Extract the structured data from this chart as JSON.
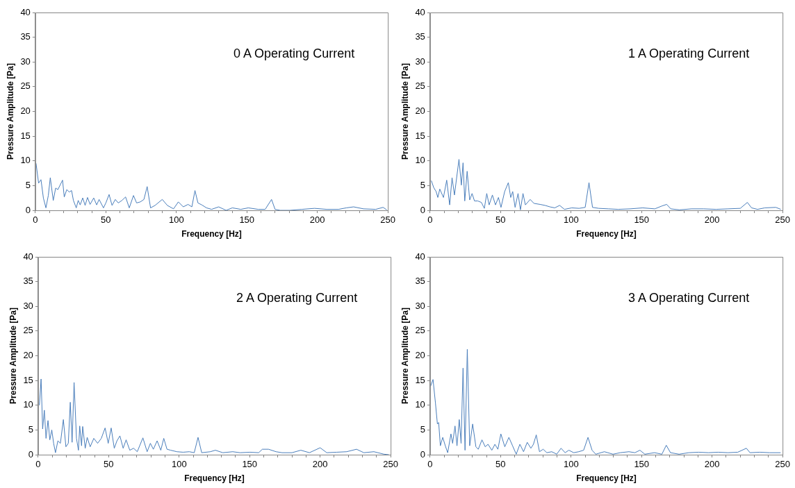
{
  "chart_data": [
    {
      "type": "line",
      "xlabel": "Frequency [Hz]",
      "ylabel": "Pressure Amplitude [Pa]",
      "annotations": [
        "0 A Operating Current"
      ],
      "color": "#4a7ebb",
      "marker": "none",
      "grid": false,
      "legend": false,
      "xlim": [
        0,
        250
      ],
      "ylim": [
        0,
        40
      ],
      "xticks": [
        0,
        {
          "value": 10,
          "label": null
        },
        {
          "value": 20,
          "label": null
        },
        {
          "value": 30,
          "label": null
        },
        {
          "value": 40,
          "label": null
        },
        50,
        {
          "value": 60,
          "label": null
        },
        {
          "value": 70,
          "label": null
        },
        {
          "value": 80,
          "label": null
        },
        {
          "value": 90,
          "label": null
        },
        100,
        {
          "value": 110,
          "label": null
        },
        {
          "value": 120,
          "label": null
        },
        {
          "value": 130,
          "label": null
        },
        {
          "value": 140,
          "label": null
        },
        150,
        {
          "value": 160,
          "label": null
        },
        {
          "value": 170,
          "label": null
        },
        {
          "value": 180,
          "label": null
        },
        {
          "value": 190,
          "label": null
        },
        200,
        {
          "value": 210,
          "label": null
        },
        {
          "value": 220,
          "label": null
        },
        {
          "value": 230,
          "label": null
        },
        {
          "value": 240,
          "label": null
        },
        250
      ],
      "yticks": [
        0,
        5,
        10,
        15,
        20,
        25,
        30,
        35,
        40
      ],
      "x": [
        0.5,
        2.3,
        4,
        5.7,
        7.5,
        9.2,
        10.6,
        12.7,
        14.4,
        16,
        19.3,
        20.5,
        22.3,
        24,
        25.7,
        27,
        29,
        30.4,
        31.8,
        33.6,
        35.3,
        37,
        38.8,
        41.4,
        43.5,
        45.2,
        48.3,
        50,
        52.3,
        54.4,
        56.7,
        58.8,
        61.4,
        64,
        66.6,
        69.6,
        71.8,
        74.4,
        77,
        79.3,
        81.7,
        84.9,
        90,
        93.6,
        98,
        101.4,
        104.9,
        108.3,
        111,
        113.2,
        115.3,
        118,
        121.4,
        125,
        130,
        135.3,
        139.7,
        145.7,
        151,
        158,
        163,
        167.5,
        170,
        173.6,
        180.5,
        189,
        198,
        206.6,
        215,
        220.5,
        225.7,
        232.7,
        241.4,
        246.6,
        249.2
      ],
      "values": [
        9.5,
        5.5,
        6.2,
        2.5,
        0.5,
        3,
        6.6,
        2,
        4.5,
        4.2,
        6.1,
        2.7,
        4.2,
        3.7,
        4,
        2,
        0.5,
        2,
        1.1,
        2.5,
        1,
        2.6,
        1.2,
        2.5,
        1.1,
        2.2,
        0.5,
        1.5,
        3.2,
        1,
        2.2,
        1.5,
        2,
        2.7,
        0.5,
        3,
        1.5,
        1.7,
        2.2,
        4.8,
        0.5,
        1,
        2.2,
        1,
        0.3,
        1.7,
        0.7,
        1.2,
        0.7,
        4,
        1.5,
        1.1,
        0.5,
        0.2,
        0.7,
        0,
        0.5,
        0.2,
        0.5,
        0.2,
        0.2,
        2.2,
        0.2,
        0,
        0,
        0.2,
        0.4,
        0.2,
        0.2,
        0.5,
        0.7,
        0.3,
        0.2,
        0.6,
        0.1
      ]
    },
    {
      "type": "line",
      "xlabel": "Frequency [Hz]",
      "ylabel": "Pressure Amplitude [Pa]",
      "annotations": [
        "1 A Operating Current"
      ],
      "color": "#4a7ebb",
      "marker": "none",
      "grid": false,
      "legend": false,
      "xlim": [
        0,
        250
      ],
      "ylim": [
        0,
        40
      ],
      "xticks": [
        0,
        {
          "value": 10,
          "label": null
        },
        {
          "value": 20,
          "label": null
        },
        {
          "value": 30,
          "label": null
        },
        {
          "value": 40,
          "label": null
        },
        50,
        {
          "value": 60,
          "label": null
        },
        {
          "value": 70,
          "label": null
        },
        {
          "value": 80,
          "label": null
        },
        {
          "value": 90,
          "label": null
        },
        100,
        {
          "value": 110,
          "label": null
        },
        {
          "value": 120,
          "label": null
        },
        {
          "value": 130,
          "label": null
        },
        {
          "value": 140,
          "label": null
        },
        150,
        {
          "value": 160,
          "label": null
        },
        {
          "value": 170,
          "label": null
        },
        {
          "value": 180,
          "label": null
        },
        {
          "value": 190,
          "label": null
        },
        200,
        {
          "value": 210,
          "label": null
        },
        {
          "value": 220,
          "label": null
        },
        {
          "value": 230,
          "label": null
        },
        {
          "value": 240,
          "label": null
        },
        250
      ],
      "yticks": [
        0,
        5,
        10,
        15,
        20,
        25,
        30,
        35,
        40
      ],
      "x": [
        0.9,
        2.6,
        4.3,
        5.5,
        6.9,
        9.5,
        11.8,
        13.9,
        15.6,
        17.3,
        20.5,
        22.2,
        23.4,
        24.6,
        26.3,
        28.1,
        29.8,
        31.5,
        33.8,
        36.4,
        38.5,
        40.2,
        41.9,
        44.2,
        46.4,
        48.5,
        50.3,
        52.9,
        55.5,
        57.2,
        58.6,
        60.3,
        62.4,
        64.1,
        65.9,
        67.6,
        71,
        73.7,
        78,
        81.5,
        85,
        88.4,
        91.9,
        95.3,
        100.5,
        105.7,
        110,
        112.7,
        115.2,
        119.6,
        126.5,
        133.4,
        142,
        150.8,
        159.4,
        164.6,
        167.8,
        170.7,
        176.8,
        185.4,
        194,
        202.8,
        211.4,
        220,
        225,
        228,
        232.2,
        237.4,
        245.2,
        248.7
      ],
      "values": [
        6,
        4.6,
        3.8,
        2.6,
        4.3,
        2.6,
        6.1,
        1.1,
        6.6,
        3.1,
        10.3,
        5.1,
        9.6,
        1.9,
        7.9,
        2.1,
        3.4,
        1.9,
        1.9,
        1.6,
        0.4,
        3.4,
        1.1,
        3.1,
        1.1,
        2.6,
        0.6,
        3.8,
        5.6,
        2.6,
        3.8,
        0.6,
        3.4,
        0.1,
        3.4,
        1.1,
        2.2,
        1.4,
        1.2,
        1,
        0.7,
        0.5,
        1,
        0.2,
        0.5,
        0.4,
        0.6,
        5.6,
        0.6,
        0.4,
        0.3,
        0.2,
        0.3,
        0.5,
        0.3,
        0.9,
        1.2,
        0.3,
        0.1,
        0.3,
        0.3,
        0.2,
        0.3,
        0.4,
        1.6,
        0.5,
        0.2,
        0.5,
        0.6,
        0.2
      ]
    },
    {
      "type": "line",
      "xlabel": "Frequency [Hz]",
      "ylabel": "Pressure Amplitude [Pa]",
      "annotations": [
        "2 A Operating Current"
      ],
      "color": "#4a7ebb",
      "marker": "none",
      "grid": false,
      "legend": false,
      "xlim": [
        0,
        250
      ],
      "ylim": [
        0,
        40
      ],
      "xticks": [
        0,
        {
          "value": 10,
          "label": null
        },
        {
          "value": 20,
          "label": null
        },
        {
          "value": 30,
          "label": null
        },
        {
          "value": 40,
          "label": null
        },
        50,
        {
          "value": 60,
          "label": null
        },
        {
          "value": 70,
          "label": null
        },
        {
          "value": 80,
          "label": null
        },
        {
          "value": 90,
          "label": null
        },
        100,
        {
          "value": 110,
          "label": null
        },
        {
          "value": 120,
          "label": null
        },
        {
          "value": 130,
          "label": null
        },
        {
          "value": 140,
          "label": null
        },
        150,
        {
          "value": 160,
          "label": null
        },
        {
          "value": 170,
          "label": null
        },
        {
          "value": 180,
          "label": null
        },
        {
          "value": 190,
          "label": null
        },
        200,
        {
          "value": 210,
          "label": null
        },
        {
          "value": 220,
          "label": null
        },
        {
          "value": 230,
          "label": null
        },
        {
          "value": 240,
          "label": null
        },
        250
      ],
      "yticks": [
        0,
        5,
        10,
        15,
        20,
        25,
        30,
        35,
        40
      ],
      "x": [
        0.9,
        2.1,
        3.2,
        4.4,
        5.6,
        7,
        8.3,
        9.7,
        11,
        12.3,
        14,
        15.8,
        17.9,
        19.7,
        21.4,
        22.8,
        24.1,
        25.5,
        27.2,
        28.6,
        29.5,
        30.8,
        31.6,
        33.4,
        34.8,
        36.9,
        39.5,
        42.2,
        44.8,
        47.5,
        49.7,
        51.8,
        54,
        55.9,
        58,
        60.3,
        62.4,
        65,
        67.7,
        70.3,
        74.3,
        77.3,
        79.6,
        81.7,
        84.4,
        87,
        89.1,
        91.4,
        94,
        98.4,
        102.8,
        107.2,
        110.7,
        113.4,
        116,
        122.1,
        125.7,
        131,
        138,
        143.2,
        150.3,
        156.4,
        159,
        163.4,
        168.7,
        173,
        180,
        186.3,
        192.4,
        200,
        204.7,
        211.8,
        218.8,
        225.8,
        231,
        238.1,
        245.2,
        248.7
      ],
      "values": [
        10,
        15.3,
        5.2,
        9,
        3.3,
        6.9,
        3,
        5,
        2.3,
        0.4,
        2.8,
        2.3,
        7.1,
        1.6,
        2.3,
        10.6,
        2.5,
        14.6,
        3.3,
        0.9,
        5.8,
        1.8,
        5.7,
        1.3,
        3.5,
        1.6,
        3.3,
        2.3,
        3.3,
        5.4,
        2.3,
        5.4,
        1.3,
        2.8,
        3.8,
        1.3,
        3,
        0.9,
        1.3,
        0.6,
        3.4,
        0.6,
        2.3,
        1.1,
        2.8,
        0.9,
        3.3,
        1.1,
        0.9,
        0.6,
        0.5,
        0.6,
        0.4,
        3.5,
        0.4,
        0.6,
        0.9,
        0.4,
        0.6,
        0.4,
        0.5,
        0.4,
        1.1,
        1.1,
        0.6,
        0.4,
        0.4,
        0.9,
        0.4,
        1.4,
        0.4,
        0.5,
        0.6,
        1.1,
        0.4,
        0.6,
        0.1,
        0
      ]
    },
    {
      "type": "line",
      "xlabel": "Frequency [Hz]",
      "ylabel": "Pressure Amplitude [Pa]",
      "annotations": [
        "3 A Operating Current"
      ],
      "color": "#4a7ebb",
      "marker": "none",
      "grid": false,
      "legend": false,
      "xlim": [
        0,
        250
      ],
      "ylim": [
        0,
        40
      ],
      "xticks": [
        0,
        {
          "value": 10,
          "label": null
        },
        {
          "value": 20,
          "label": null
        },
        {
          "value": 30,
          "label": null
        },
        {
          "value": 40,
          "label": null
        },
        50,
        {
          "value": 60,
          "label": null
        },
        {
          "value": 70,
          "label": null
        },
        {
          "value": 80,
          "label": null
        },
        {
          "value": 90,
          "label": null
        },
        100,
        {
          "value": 110,
          "label": null
        },
        {
          "value": 120,
          "label": null
        },
        {
          "value": 130,
          "label": null
        },
        {
          "value": 140,
          "label": null
        },
        150,
        {
          "value": 160,
          "label": null
        },
        {
          "value": 170,
          "label": null
        },
        {
          "value": 180,
          "label": null
        },
        {
          "value": 190,
          "label": null
        },
        200,
        {
          "value": 210,
          "label": null
        },
        {
          "value": 220,
          "label": null
        },
        {
          "value": 230,
          "label": null
        },
        {
          "value": 240,
          "label": null
        },
        250
      ],
      "yticks": [
        0,
        5,
        10,
        15,
        20,
        25,
        30,
        35,
        40
      ],
      "x": [
        0.3,
        2.1,
        3.8,
        5.2,
        6.1,
        7.3,
        9,
        10.8,
        12.5,
        14.8,
        16,
        17.7,
        19.1,
        20.7,
        22,
        23.4,
        24.8,
        26.4,
        28.1,
        30.2,
        32.5,
        34.2,
        36.8,
        39.1,
        41.1,
        43.8,
        46,
        48.1,
        50.2,
        53,
        55.9,
        58.5,
        61.1,
        63.7,
        66.3,
        68.9,
        71.5,
        73.3,
        75.3,
        77.6,
        80.2,
        82.8,
        86.3,
        89.8,
        92.9,
        95.8,
        98.4,
        101.9,
        105.4,
        108.9,
        112,
        114.9,
        117.5,
        123.6,
        129.7,
        134.9,
        141,
        145.3,
        148.8,
        152.3,
        159.2,
        164.4,
        167.5,
        170.5,
        176.6,
        183.5,
        190.5,
        197.4,
        204.3,
        211.3,
        218.2,
        224.3,
        226.9,
        233.9,
        240.8,
        248.6
      ],
      "values": [
        13.8,
        15.2,
        10.5,
        6.2,
        6.5,
        1.8,
        3.5,
        1.8,
        0.4,
        4.2,
        2.3,
        5.8,
        1.8,
        7.1,
        2.3,
        17.5,
        0.9,
        21.3,
        1.8,
        6.2,
        1.6,
        1.1,
        3,
        1.6,
        2.1,
        0.9,
        2.1,
        1.1,
        4.2,
        1.6,
        3.5,
        1.8,
        0.1,
        2.1,
        0.6,
        2.5,
        1.3,
        2.1,
        4,
        0.6,
        1.1,
        0.4,
        0.6,
        0.1,
        1.3,
        0.4,
        0.9,
        0.4,
        0.6,
        0.9,
        3.5,
        0.9,
        0.1,
        0.6,
        0.1,
        0.4,
        0.6,
        0.4,
        0.9,
        0.1,
        0.4,
        0.1,
        1.9,
        0.4,
        0.1,
        0.4,
        0.5,
        0.4,
        0.5,
        0.4,
        0.5,
        1.3,
        0.4,
        0.5,
        0.4,
        0.4
      ]
    }
  ]
}
